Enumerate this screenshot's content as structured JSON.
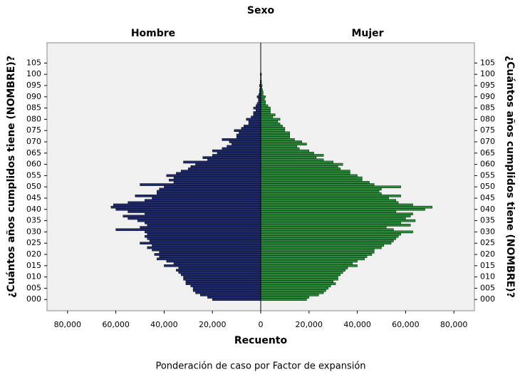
{
  "chart_data": {
    "type": "pyramid",
    "title": "Sexo",
    "xlabel": "Recuento",
    "ylabel": "¿Cuántos años cumplidos tiene (NOMBRE)?",
    "footnote": "Ponderación de caso por Factor de expansión",
    "ages": [
      0,
      1,
      2,
      3,
      4,
      5,
      6,
      7,
      8,
      9,
      10,
      11,
      12,
      13,
      14,
      15,
      16,
      17,
      18,
      19,
      20,
      21,
      22,
      23,
      24,
      25,
      26,
      27,
      28,
      29,
      30,
      31,
      32,
      33,
      34,
      35,
      36,
      37,
      38,
      39,
      40,
      41,
      42,
      43,
      44,
      45,
      46,
      47,
      48,
      49,
      50,
      51,
      52,
      53,
      54,
      55,
      56,
      57,
      58,
      59,
      60,
      61,
      62,
      63,
      64,
      65,
      66,
      67,
      68,
      69,
      70,
      71,
      72,
      73,
      74,
      75,
      76,
      77,
      78,
      79,
      80,
      81,
      82,
      83,
      84,
      85,
      86,
      87,
      88,
      89,
      90,
      91,
      92,
      93,
      94,
      95,
      96,
      97,
      98,
      99,
      100,
      101,
      102,
      103,
      104,
      105
    ],
    "series": [
      {
        "name": "Hombre",
        "color": "#1f2a6b",
        "values": [
          20000,
          22000,
          25000,
          27000,
          28000,
          28000,
          29000,
          31000,
          31000,
          32000,
          32000,
          33000,
          34000,
          35000,
          34000,
          40000,
          36000,
          39000,
          43000,
          42000,
          44000,
          42000,
          45000,
          47000,
          45000,
          50000,
          46000,
          47000,
          48000,
          47000,
          48000,
          60000,
          50000,
          47000,
          48000,
          51000,
          55000,
          57000,
          48000,
          55000,
          60000,
          62000,
          61000,
          55000,
          48000,
          45000,
          52000,
          43000,
          43000,
          42000,
          40000,
          50000,
          36000,
          38000,
          36000,
          39000,
          35000,
          33000,
          30000,
          29000,
          27000,
          32000,
          22000,
          24000,
          20000,
          18000,
          20000,
          16000,
          14000,
          12000,
          13000,
          16000,
          10000,
          10000,
          9000,
          11000,
          8000,
          7000,
          5000,
          5000,
          6000,
          4000,
          3000,
          3000,
          2000,
          3000,
          2000,
          1500,
          1000,
          1000,
          1500,
          800,
          500,
          500,
          300,
          500,
          200,
          200,
          100,
          100,
          200,
          50,
          50,
          30,
          20,
          20
        ]
      },
      {
        "name": "Mujer",
        "color": "#2a8a3a",
        "values": [
          19000,
          20000,
          24000,
          26000,
          27000,
          28000,
          29000,
          31000,
          30000,
          32000,
          32000,
          33000,
          34000,
          35000,
          36000,
          40000,
          38000,
          40000,
          43000,
          44000,
          46000,
          47000,
          47000,
          50000,
          51000,
          54000,
          55000,
          56000,
          57000,
          58000,
          63000,
          55000,
          52000,
          62000,
          58000,
          64000,
          60000,
          62000,
          63000,
          56000,
          68000,
          71000,
          63000,
          57000,
          56000,
          53000,
          58000,
          50000,
          49000,
          50000,
          58000,
          47000,
          45000,
          42000,
          42000,
          40000,
          37000,
          37000,
          33000,
          32000,
          34000,
          30000,
          26000,
          23000,
          26000,
          22000,
          20000,
          16000,
          15000,
          19000,
          17000,
          14000,
          12000,
          12000,
          12000,
          10000,
          10000,
          9000,
          8000,
          7000,
          8000,
          5000,
          6000,
          4000,
          4000,
          4000,
          3000,
          2000,
          2000,
          1500,
          2000,
          1000,
          1000,
          800,
          500,
          600,
          300,
          300,
          200,
          200,
          300,
          100,
          50,
          50,
          30,
          30
        ]
      }
    ],
    "xlim": [
      0,
      88500
    ],
    "xticks": [
      0,
      {
        "value": 20000,
        "label": "20,000"
      },
      {
        "value": 40000,
        "label": "40,000"
      },
      {
        "value": 60000,
        "label": "60,000"
      },
      {
        "value": 80000,
        "label": "80,000"
      }
    ],
    "ylim": [
      -5,
      114
    ],
    "yticks": [
      {
        "value": 0,
        "label": "000"
      },
      {
        "value": 5,
        "label": "005"
      },
      {
        "value": 10,
        "label": "010"
      },
      {
        "value": 15,
        "label": "015"
      },
      {
        "value": 20,
        "label": "020"
      },
      {
        "value": 25,
        "label": "025"
      },
      {
        "value": 30,
        "label": "030"
      },
      {
        "value": 35,
        "label": "035"
      },
      {
        "value": 40,
        "label": "040"
      },
      {
        "value": 45,
        "label": "045"
      },
      {
        "value": 50,
        "label": "050"
      },
      {
        "value": 55,
        "label": "055"
      },
      {
        "value": 60,
        "label": "060"
      },
      {
        "value": 65,
        "label": "065"
      },
      {
        "value": 70,
        "label": "070"
      },
      {
        "value": 75,
        "label": "075"
      },
      {
        "value": 80,
        "label": "080"
      },
      {
        "value": 85,
        "label": "085"
      },
      {
        "value": 90,
        "label": "090"
      },
      {
        "value": 95,
        "label": "095"
      },
      {
        "value": 100,
        "label": "100"
      },
      {
        "value": 105,
        "label": "105"
      }
    ]
  }
}
